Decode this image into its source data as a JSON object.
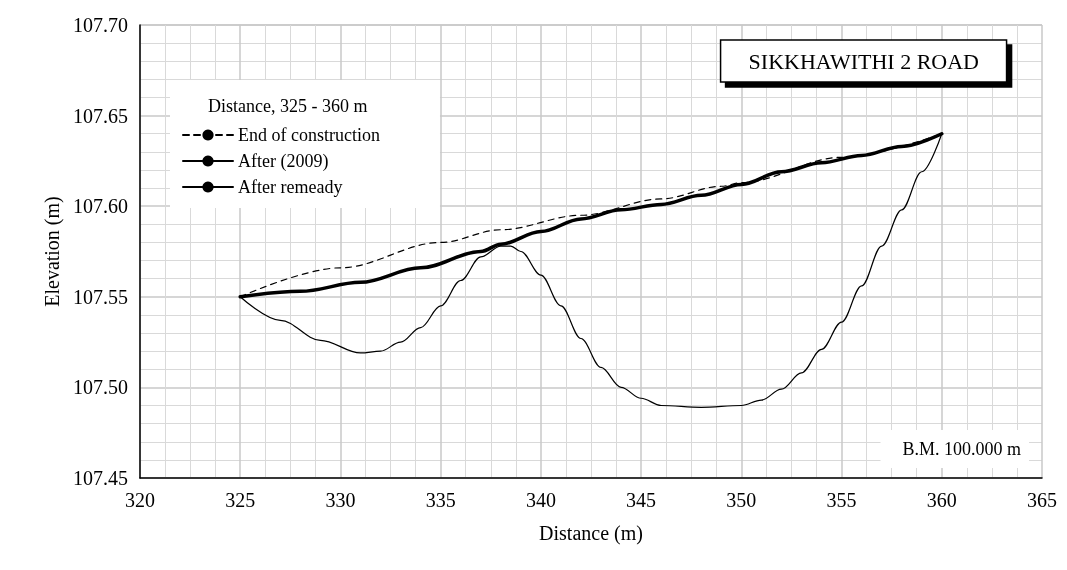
{
  "chart_data": {
    "type": "line",
    "title": "SIKKHAWITHI 2 ROAD",
    "xlabel": "Distance (m)",
    "ylabel": "Elevation (m)",
    "legend_title": "Distance, 325 - 360 m",
    "annotations": [
      "B.M. 100.000 m"
    ],
    "series": [
      {
        "name": "End of construction",
        "color": "#000000",
        "line_style": "dashed",
        "x": [
          325,
          330,
          335,
          338,
          342,
          346,
          349,
          350,
          355,
          360
        ],
        "values": [
          107.55,
          107.566,
          107.58,
          107.587,
          107.595,
          107.604,
          107.611,
          107.613,
          107.627,
          107.64
        ]
      },
      {
        "name": "After (2009)",
        "color": "#000000",
        "line_style": "solid",
        "x": [
          325,
          327,
          329,
          331,
          332,
          333,
          334,
          335,
          336,
          337,
          338,
          338.5,
          339,
          340,
          341,
          342,
          343,
          344,
          345,
          346,
          348,
          350,
          351,
          352,
          353,
          354,
          355,
          356,
          357,
          358,
          359,
          360
        ],
        "values": [
          107.55,
          107.537,
          107.526,
          107.519,
          107.52,
          107.525,
          107.533,
          107.545,
          107.559,
          107.572,
          107.578,
          107.578,
          107.575,
          107.562,
          107.545,
          107.527,
          107.511,
          107.5,
          107.494,
          107.49,
          107.489,
          107.49,
          107.493,
          107.499,
          107.508,
          107.521,
          107.536,
          107.556,
          107.578,
          107.598,
          107.619,
          107.64
        ]
      },
      {
        "name": "After remeady",
        "color": "#000000",
        "line_style": "solid",
        "x": [
          325,
          328,
          331,
          334,
          337,
          338,
          340,
          342,
          344,
          346,
          348,
          350,
          352,
          354,
          356,
          358,
          360
        ],
        "values": [
          107.55,
          107.553,
          107.558,
          107.566,
          107.575,
          107.579,
          107.586,
          107.593,
          107.598,
          107.601,
          107.606,
          107.612,
          107.619,
          107.624,
          107.628,
          107.633,
          107.64
        ]
      }
    ],
    "xlim": [
      320,
      365
    ],
    "xticks": [
      320,
      325,
      330,
      335,
      340,
      345,
      350,
      355,
      360,
      365
    ],
    "ylim": [
      107.45,
      107.7
    ],
    "yticks": [
      {
        "value": 107.45,
        "label": "107.45"
      },
      {
        "value": 107.5,
        "label": "107.50"
      },
      {
        "value": 107.55,
        "label": "107.55"
      },
      {
        "value": 107.6,
        "label": "107.60"
      },
      {
        "value": 107.65,
        "label": "107.65"
      },
      {
        "value": 107.7,
        "label": "107.70"
      }
    ],
    "grid": true,
    "legend": "top left",
    "marker": "none"
  }
}
